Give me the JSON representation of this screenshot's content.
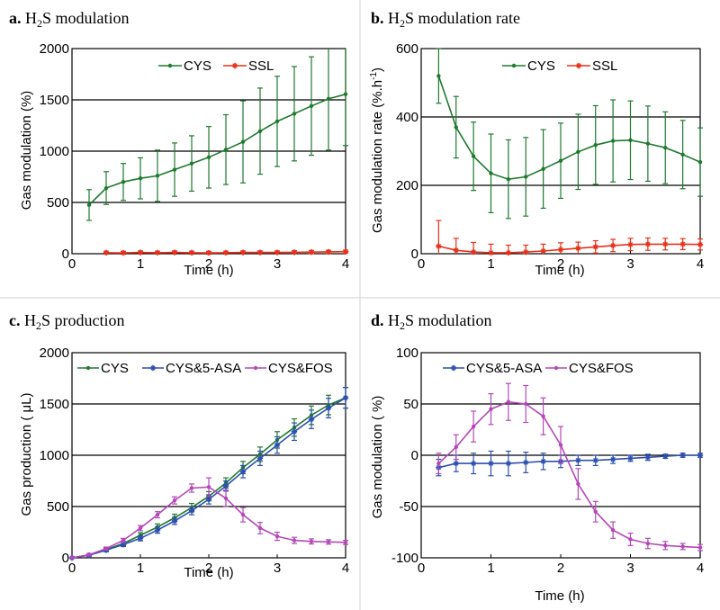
{
  "chart_data": [
    {
      "type": "line",
      "panel_letter": "a.",
      "title_prefix": "H",
      "title_sub": "2",
      "title_suffix": "S modulation",
      "xlabel": "Time (h)",
      "ylabel": "Gas modulation (%)",
      "xlim": [
        0,
        4
      ],
      "ylim": [
        0,
        2000
      ],
      "xticks": [
        0,
        1,
        2,
        3,
        4
      ],
      "yticks": [
        0,
        500,
        1000,
        1500,
        2000
      ],
      "gridlines": [
        500,
        1000,
        1500
      ],
      "legend_position": "top",
      "legend": [
        "CYS",
        "SSL"
      ],
      "series": [
        {
          "name": "CYS",
          "color": "#1f7a2e",
          "marker": "dot",
          "x": [
            0.25,
            0.5,
            0.75,
            1.0,
            1.25,
            1.5,
            1.75,
            2.0,
            2.25,
            2.5,
            2.75,
            3.0,
            3.25,
            3.5,
            3.75,
            4.0
          ],
          "y": [
            475,
            640,
            700,
            735,
            760,
            820,
            880,
            940,
            1015,
            1090,
            1195,
            1290,
            1365,
            1440,
            1510,
            1555
          ],
          "err": [
            150,
            160,
            180,
            200,
            250,
            260,
            270,
            300,
            340,
            400,
            420,
            440,
            460,
            480,
            500,
            500
          ]
        },
        {
          "name": "SSL",
          "color": "#e8301a",
          "marker": "star",
          "x": [
            0.5,
            0.75,
            1.0,
            1.25,
            1.5,
            1.75,
            2.0,
            2.25,
            2.5,
            2.75,
            3.0,
            3.25,
            3.5,
            3.75,
            4.0
          ],
          "y": [
            10,
            8,
            12,
            10,
            12,
            10,
            8,
            10,
            12,
            12,
            12,
            14,
            16,
            18,
            20
          ],
          "err": [
            15,
            15,
            15,
            15,
            15,
            15,
            15,
            15,
            15,
            15,
            15,
            15,
            15,
            15,
            15
          ]
        }
      ]
    },
    {
      "type": "line",
      "panel_letter": "b.",
      "title_prefix": "H",
      "title_sub": "2",
      "title_suffix": "S modulation rate",
      "xlabel": "Time (h)",
      "ylabel": "Gas modulation rate (%.h",
      "ylabel_sup": "-1",
      "ylabel_end": ")",
      "xlim": [
        0,
        4
      ],
      "ylim": [
        0,
        600
      ],
      "xticks": [
        0,
        1,
        2,
        3,
        4
      ],
      "yticks": [
        0,
        200,
        400,
        600
      ],
      "gridlines": [
        200,
        400
      ],
      "legend_position": "top",
      "legend": [
        "CYS",
        "SSL"
      ],
      "series": [
        {
          "name": "CYS",
          "color": "#1f7a2e",
          "marker": "dot",
          "x": [
            0.25,
            0.5,
            0.75,
            1.0,
            1.25,
            1.5,
            1.75,
            2.0,
            2.25,
            2.5,
            2.75,
            3.0,
            3.25,
            3.5,
            3.75,
            4.0
          ],
          "y": [
            520,
            370,
            285,
            235,
            218,
            225,
            248,
            272,
            298,
            318,
            330,
            332,
            322,
            310,
            290,
            268
          ],
          "err": [
            80,
            90,
            100,
            115,
            115,
            115,
            115,
            110,
            110,
            115,
            120,
            115,
            110,
            105,
            100,
            100
          ]
        },
        {
          "name": "SSL",
          "color": "#e8301a",
          "marker": "star",
          "x": [
            0.25,
            0.5,
            0.75,
            1.0,
            1.25,
            1.5,
            1.75,
            2.0,
            2.25,
            2.5,
            2.75,
            3.0,
            3.25,
            3.5,
            3.75,
            4.0
          ],
          "y": [
            22,
            10,
            5,
            3,
            3,
            5,
            8,
            12,
            16,
            20,
            24,
            27,
            28,
            28,
            28,
            27
          ],
          "err": [
            75,
            35,
            28,
            25,
            22,
            20,
            20,
            20,
            18,
            18,
            18,
            18,
            18,
            17,
            16,
            16
          ]
        }
      ]
    },
    {
      "type": "line",
      "panel_letter": "c.",
      "title_prefix": "H",
      "title_sub": "2",
      "title_suffix": "S production",
      "xlabel": "Time (h)",
      "ylabel": "Gas production ( μL)",
      "xlim": [
        0,
        4
      ],
      "ylim": [
        0,
        2000
      ],
      "xticks": [
        0,
        1,
        2,
        3,
        4
      ],
      "yticks": [
        0,
        500,
        1000,
        1500,
        2000
      ],
      "gridlines": [
        500,
        1000,
        1500
      ],
      "legend_position": "top",
      "legend": [
        "CYS",
        "CYS&5-ASA",
        "CYS&FOS"
      ],
      "series": [
        {
          "name": "CYS",
          "color": "#1f7a2e",
          "marker": "dot",
          "x": [
            0,
            0.25,
            0.5,
            0.75,
            1.0,
            1.25,
            1.5,
            1.75,
            2.0,
            2.25,
            2.5,
            2.75,
            3.0,
            3.25,
            3.5,
            3.75,
            4.0
          ],
          "y": [
            0,
            30,
            80,
            140,
            220,
            300,
            390,
            490,
            600,
            730,
            880,
            1010,
            1150,
            1270,
            1390,
            1490,
            1560
          ],
          "err": [
            0,
            10,
            15,
            20,
            25,
            30,
            35,
            40,
            45,
            50,
            60,
            70,
            80,
            85,
            90,
            95,
            100
          ]
        },
        {
          "name": "CYS&5-ASA",
          "color": "#2e4fb0",
          "marker": "star",
          "x": [
            0,
            0.25,
            0.5,
            0.75,
            1.0,
            1.25,
            1.5,
            1.75,
            2.0,
            2.25,
            2.5,
            2.75,
            3.0,
            3.25,
            3.5,
            3.75,
            4.0
          ],
          "y": [
            0,
            25,
            75,
            130,
            190,
            270,
            360,
            460,
            570,
            700,
            840,
            970,
            1100,
            1230,
            1350,
            1460,
            1560
          ],
          "err": [
            0,
            10,
            15,
            20,
            25,
            30,
            35,
            40,
            45,
            50,
            60,
            70,
            80,
            85,
            90,
            95,
            100
          ]
        },
        {
          "name": "CYS&FOS",
          "color": "#b547b9",
          "marker": "dot",
          "x": [
            0,
            0.25,
            0.5,
            0.75,
            1.0,
            1.25,
            1.5,
            1.75,
            2.0,
            2.25,
            2.5,
            2.75,
            3.0,
            3.25,
            3.5,
            3.75,
            4.0
          ],
          "y": [
            0,
            30,
            90,
            170,
            290,
            420,
            560,
            680,
            690,
            580,
            420,
            290,
            210,
            170,
            160,
            155,
            150
          ],
          "err": [
            0,
            10,
            15,
            20,
            25,
            30,
            35,
            40,
            90,
            80,
            70,
            55,
            40,
            30,
            25,
            22,
            20
          ]
        }
      ]
    },
    {
      "type": "line",
      "panel_letter": "d.",
      "title_prefix": "H",
      "title_sub": "2",
      "title_suffix": "S modulation",
      "xlabel": "Time (h)",
      "ylabel": "Gas modulation ( %)",
      "xlim": [
        0,
        4
      ],
      "ylim": [
        -100,
        100
      ],
      "xticks": [
        0,
        1,
        2,
        3,
        4
      ],
      "yticks": [
        -100,
        -50,
        0,
        50,
        100
      ],
      "gridlines": [
        -50,
        0,
        50
      ],
      "legend_position": "top",
      "legend": [
        "CYS&5-ASA",
        "CYS&FOS"
      ],
      "series": [
        {
          "name": "CYS&5-ASA",
          "color": "#2e4fb0",
          "marker": "star",
          "x": [
            0.25,
            0.5,
            0.75,
            1.0,
            1.25,
            1.5,
            1.75,
            2.0,
            2.25,
            2.5,
            2.75,
            3.0,
            3.25,
            3.5,
            3.75,
            4.0
          ],
          "y": [
            -12,
            -8,
            -8,
            -8,
            -8,
            -7,
            -6,
            -6,
            -5,
            -5,
            -4,
            -3,
            -2,
            -1,
            0,
            0
          ],
          "err": [
            8,
            8,
            10,
            12,
            12,
            10,
            8,
            6,
            5,
            5,
            4,
            3,
            3,
            2,
            2,
            2
          ]
        },
        {
          "name": "CYS&FOS",
          "color": "#b547b9",
          "marker": "dot",
          "x": [
            0.25,
            0.5,
            0.75,
            1.0,
            1.25,
            1.5,
            1.75,
            2.0,
            2.25,
            2.5,
            2.75,
            3.0,
            3.25,
            3.5,
            3.75,
            4.0
          ],
          "y": [
            -8,
            8,
            28,
            45,
            52,
            50,
            38,
            10,
            -28,
            -55,
            -73,
            -82,
            -86,
            -88,
            -89,
            -90
          ],
          "err": [
            10,
            12,
            15,
            15,
            18,
            18,
            18,
            18,
            15,
            10,
            8,
            6,
            5,
            4,
            3,
            3
          ]
        }
      ]
    }
  ]
}
